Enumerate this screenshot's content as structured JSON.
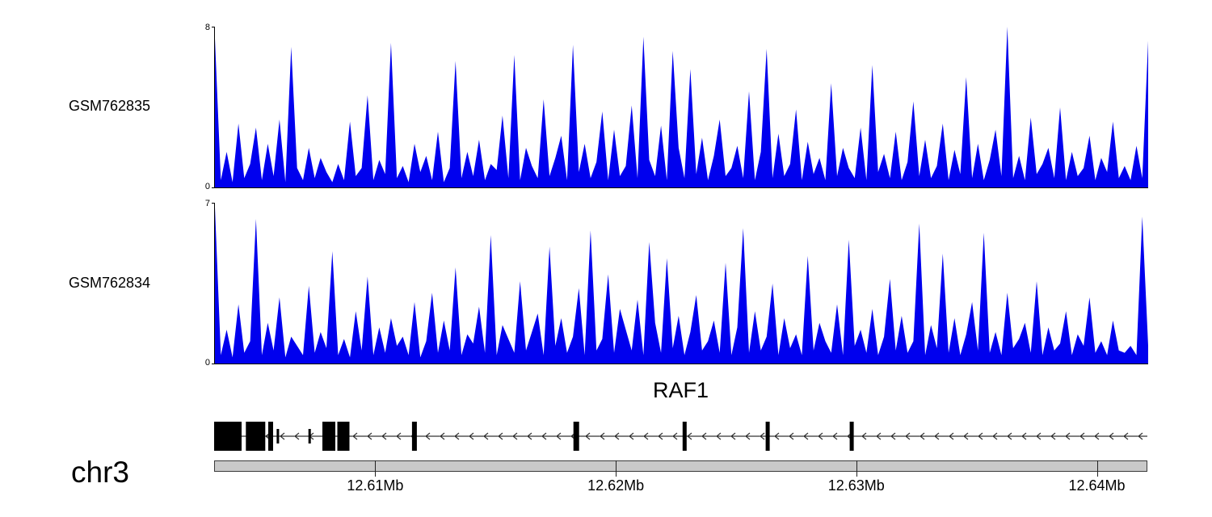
{
  "chart_data": {
    "type": "area",
    "description": "Genome browser coverage tracks over RAF1 locus",
    "tracks": [
      {
        "name": "GSM762835",
        "color": "#0000EE",
        "ylim": [
          0,
          8
        ],
        "y_top_label": "8",
        "y_bottom_label": "0",
        "values": [
          7.4,
          0.4,
          1.8,
          0.3,
          3.2,
          0.5,
          1.2,
          3.0,
          0.4,
          2.2,
          0.6,
          3.4,
          0.3,
          7.0,
          1.0,
          0.4,
          2.0,
          0.5,
          1.5,
          0.8,
          0.3,
          1.2,
          0.4,
          3.3,
          0.6,
          1.0,
          4.6,
          0.4,
          1.4,
          0.7,
          7.2,
          0.5,
          1.1,
          0.3,
          2.2,
          0.8,
          1.6,
          0.4,
          2.8,
          0.3,
          1.0,
          6.3,
          0.5,
          1.8,
          0.6,
          2.4,
          0.4,
          1.2,
          0.9,
          3.6,
          0.5,
          6.6,
          0.4,
          2.0,
          1.1,
          0.5,
          4.4,
          0.6,
          1.5,
          2.6,
          0.4,
          7.1,
          0.8,
          2.2,
          0.5,
          1.3,
          3.8,
          0.4,
          2.9,
          0.6,
          1.1,
          4.1,
          0.5,
          7.5,
          1.4,
          0.6,
          3.1,
          0.4,
          6.8,
          2.0,
          0.5,
          5.9,
          0.7,
          2.5,
          0.4,
          1.6,
          3.4,
          0.6,
          1.0,
          2.1,
          0.5,
          4.8,
          0.4,
          1.8,
          6.9,
          0.5,
          2.7,
          0.6,
          1.2,
          3.9,
          0.4,
          2.3,
          0.7,
          1.5,
          0.4,
          5.2,
          0.6,
          2.0,
          1.0,
          0.5,
          3.0,
          0.4,
          6.1,
          0.8,
          1.7,
          0.5,
          2.8,
          0.4,
          1.3,
          4.3,
          0.6,
          2.4,
          0.5,
          1.1,
          3.2,
          0.4,
          1.9,
          0.7,
          5.5,
          0.5,
          2.2,
          0.4,
          1.4,
          2.9,
          0.6,
          8.0,
          0.5,
          1.6,
          0.4,
          3.5,
          0.7,
          1.2,
          2.0,
          0.5,
          4.0,
          0.4,
          1.8,
          0.6,
          1.0,
          2.6,
          0.4,
          1.5,
          0.8,
          3.3,
          0.5,
          1.1,
          0.4,
          2.1,
          0.5,
          7.3
        ]
      },
      {
        "name": "GSM762834",
        "color": "#0000EE",
        "ylim": [
          0,
          7
        ],
        "y_top_label": "7",
        "y_bottom_label": "0",
        "values": [
          6.8,
          0.4,
          1.5,
          0.3,
          2.6,
          0.5,
          1.0,
          6.3,
          0.4,
          1.8,
          0.6,
          2.9,
          0.3,
          1.2,
          0.8,
          0.4,
          3.4,
          0.5,
          1.4,
          0.7,
          4.9,
          0.4,
          1.1,
          0.3,
          2.3,
          0.6,
          3.8,
          0.4,
          1.6,
          0.5,
          2.0,
          0.8,
          1.2,
          0.4,
          2.7,
          0.3,
          1.0,
          3.1,
          0.5,
          1.9,
          0.6,
          4.2,
          0.4,
          1.3,
          0.9,
          2.5,
          0.5,
          5.6,
          0.4,
          1.7,
          1.1,
          0.5,
          3.6,
          0.6,
          1.4,
          2.2,
          0.4,
          5.1,
          0.8,
          2.0,
          0.5,
          1.2,
          3.3,
          0.4,
          5.8,
          0.6,
          1.1,
          3.9,
          0.5,
          2.4,
          1.5,
          0.6,
          2.8,
          0.4,
          5.3,
          1.8,
          0.5,
          4.6,
          0.7,
          2.1,
          0.4,
          1.4,
          3.0,
          0.6,
          1.0,
          1.9,
          0.5,
          4.4,
          0.4,
          1.6,
          5.9,
          0.5,
          2.3,
          0.6,
          1.2,
          3.5,
          0.4,
          2.0,
          0.7,
          1.3,
          0.4,
          4.7,
          0.6,
          1.8,
          1.0,
          0.5,
          2.6,
          0.4,
          5.4,
          0.8,
          1.5,
          0.5,
          2.4,
          0.4,
          1.2,
          3.7,
          0.6,
          2.1,
          0.5,
          1.0,
          6.1,
          0.4,
          1.7,
          0.7,
          4.8,
          0.5,
          2.0,
          0.4,
          1.3,
          2.7,
          0.6,
          5.7,
          0.5,
          1.4,
          0.4,
          3.1,
          0.7,
          1.1,
          1.8,
          0.5,
          3.6,
          0.4,
          1.6,
          0.6,
          0.9,
          2.3,
          0.4,
          1.3,
          0.8,
          2.9,
          0.5,
          1.0,
          0.4,
          1.9,
          0.6,
          0.5,
          0.8,
          0.4,
          6.4,
          0.8
        ]
      }
    ],
    "gene_track": {
      "gene_name": "RAF1",
      "strand": "reverse",
      "exons": [
        {
          "x": 0.0,
          "w": 34,
          "h": "full"
        },
        {
          "x": 0.034,
          "w": 24,
          "h": "full"
        },
        {
          "x": 0.058,
          "w": 6,
          "h": "full"
        },
        {
          "x": 0.067,
          "w": 3,
          "h": "half"
        },
        {
          "x": 0.101,
          "w": 3,
          "h": "half"
        },
        {
          "x": 0.116,
          "w": 16,
          "h": "full"
        },
        {
          "x": 0.132,
          "w": 15,
          "h": "full"
        },
        {
          "x": 0.212,
          "w": 6,
          "h": "full"
        },
        {
          "x": 0.385,
          "w": 7,
          "h": "full"
        },
        {
          "x": 0.502,
          "w": 5,
          "h": "full"
        },
        {
          "x": 0.591,
          "w": 5,
          "h": "full"
        },
        {
          "x": 0.681,
          "w": 5,
          "h": "full"
        }
      ]
    },
    "x_axis": {
      "chromosome": "chr3",
      "range_mb": [
        12.6033,
        12.6421
      ],
      "ticks": [
        {
          "label": "12.61Mb",
          "mb": 12.61
        },
        {
          "label": "12.62Mb",
          "mb": 12.62
        },
        {
          "label": "12.63Mb",
          "mb": 12.63
        },
        {
          "label": "12.64Mb",
          "mb": 12.64
        }
      ]
    }
  }
}
